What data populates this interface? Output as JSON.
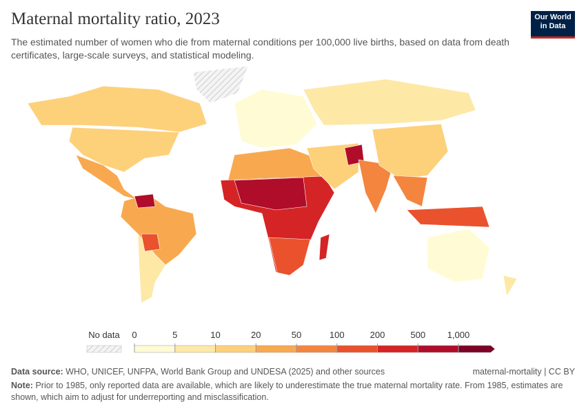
{
  "header": {
    "title": "Maternal mortality ratio, 2023",
    "subtitle": "The estimated number of women who die from maternal conditions per 100,000 live births, based on data from death certificates, large-scale surveys, and statistical modeling."
  },
  "logo": {
    "line1": "Our World",
    "line2": "in Data"
  },
  "legend": {
    "no_data": "No data",
    "ticks": [
      0,
      5,
      10,
      20,
      50,
      100,
      200,
      500,
      {
        "value": 1000,
        "label": "1,000"
      }
    ],
    "colors": [
      "#fffbd4",
      "#fee8a6",
      "#fdd07a",
      "#f8a94f",
      "#f4853f",
      "#e9522c",
      "#d42426",
      "#b00d2a",
      "#7b0325"
    ]
  },
  "footer": {
    "source_label": "Data source:",
    "source": "WHO, UNICEF, UNFPA, World Bank Group and UNDESA (2025) and other sources",
    "slug": "maternal-mortality | CC BY",
    "note_label": "Note:",
    "note": "Prior to 1985, only reported data are available, which are likely to underestimate the true maternal mortality rate. From 1985, estimates are shown, which aim to adjust for underreporting and misclassification."
  }
}
